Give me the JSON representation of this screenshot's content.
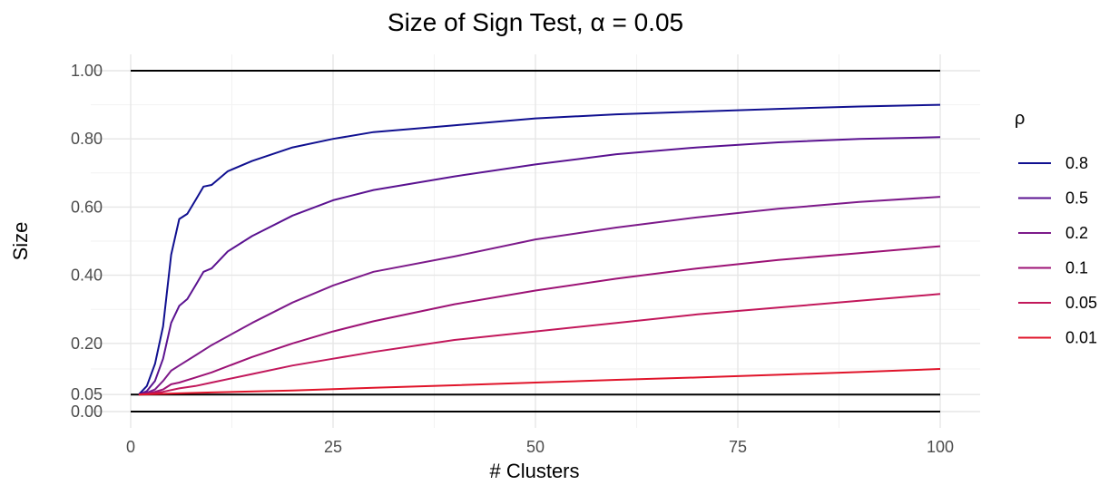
{
  "chart_data": {
    "type": "line",
    "title": "Size of Sign Test, α = 0.05",
    "xlabel": "# Clusters",
    "ylabel": "Size",
    "xlim": [
      0,
      100
    ],
    "ylim": [
      0,
      1
    ],
    "x_ticks": [
      "0",
      "25",
      "50",
      "75",
      "100"
    ],
    "x_tick_values": [
      0,
      25,
      50,
      75,
      100
    ],
    "y_ticks": [
      "0.00",
      "0.05",
      "0.20",
      "0.40",
      "0.60",
      "0.80",
      "1.00"
    ],
    "y_tick_values": [
      0,
      0.05,
      0.2,
      0.4,
      0.6,
      0.8,
      1.0
    ],
    "grid": true,
    "legend_title": "ρ",
    "legend_position": "right",
    "reference_lines": [
      0,
      0.05,
      1.0
    ],
    "series": [
      {
        "name": "0.8",
        "color": "#101090",
        "x": [
          1,
          2,
          3,
          4,
          5,
          6,
          7,
          8,
          9,
          10,
          12,
          15,
          20,
          25,
          30,
          40,
          50,
          60,
          70,
          80,
          90,
          100
        ],
        "values": [
          0.05,
          0.075,
          0.14,
          0.25,
          0.46,
          0.565,
          0.58,
          0.62,
          0.66,
          0.665,
          0.705,
          0.735,
          0.775,
          0.8,
          0.82,
          0.84,
          0.86,
          0.872,
          0.88,
          0.888,
          0.895,
          0.9
        ]
      },
      {
        "name": "0.5",
        "color": "#5a1290",
        "x": [
          1,
          2,
          3,
          4,
          5,
          6,
          7,
          8,
          9,
          10,
          12,
          15,
          20,
          25,
          30,
          40,
          50,
          60,
          70,
          80,
          90,
          100
        ],
        "values": [
          0.05,
          0.06,
          0.09,
          0.155,
          0.26,
          0.31,
          0.33,
          0.37,
          0.41,
          0.42,
          0.47,
          0.515,
          0.575,
          0.62,
          0.65,
          0.69,
          0.725,
          0.755,
          0.775,
          0.79,
          0.8,
          0.805
        ]
      },
      {
        "name": "0.2",
        "color": "#7d1a8a",
        "x": [
          1,
          2,
          3,
          4,
          5,
          6,
          8,
          10,
          15,
          20,
          25,
          30,
          40,
          50,
          60,
          70,
          80,
          90,
          100
        ],
        "values": [
          0.05,
          0.055,
          0.065,
          0.09,
          0.12,
          0.135,
          0.165,
          0.195,
          0.26,
          0.32,
          0.37,
          0.41,
          0.455,
          0.505,
          0.54,
          0.57,
          0.595,
          0.615,
          0.63
        ]
      },
      {
        "name": "0.1",
        "color": "#9c1275",
        "x": [
          1,
          2,
          3,
          4,
          5,
          6,
          8,
          10,
          15,
          20,
          25,
          30,
          40,
          50,
          60,
          70,
          80,
          90,
          100
        ],
        "values": [
          0.05,
          0.052,
          0.058,
          0.065,
          0.08,
          0.085,
          0.1,
          0.115,
          0.16,
          0.2,
          0.235,
          0.265,
          0.315,
          0.355,
          0.39,
          0.42,
          0.445,
          0.465,
          0.485
        ]
      },
      {
        "name": "0.05",
        "color": "#c2185b",
        "x": [
          1,
          2,
          4,
          6,
          8,
          10,
          15,
          20,
          25,
          30,
          40,
          50,
          60,
          70,
          80,
          90,
          100
        ],
        "values": [
          0.05,
          0.051,
          0.058,
          0.068,
          0.075,
          0.085,
          0.11,
          0.135,
          0.155,
          0.175,
          0.21,
          0.235,
          0.26,
          0.285,
          0.305,
          0.325,
          0.345
        ]
      },
      {
        "name": "0.01",
        "color": "#e0142a",
        "x": [
          1,
          5,
          10,
          20,
          30,
          40,
          50,
          60,
          70,
          80,
          90,
          100
        ],
        "values": [
          0.05,
          0.053,
          0.056,
          0.062,
          0.07,
          0.077,
          0.085,
          0.093,
          0.1,
          0.108,
          0.116,
          0.125
        ]
      }
    ]
  }
}
